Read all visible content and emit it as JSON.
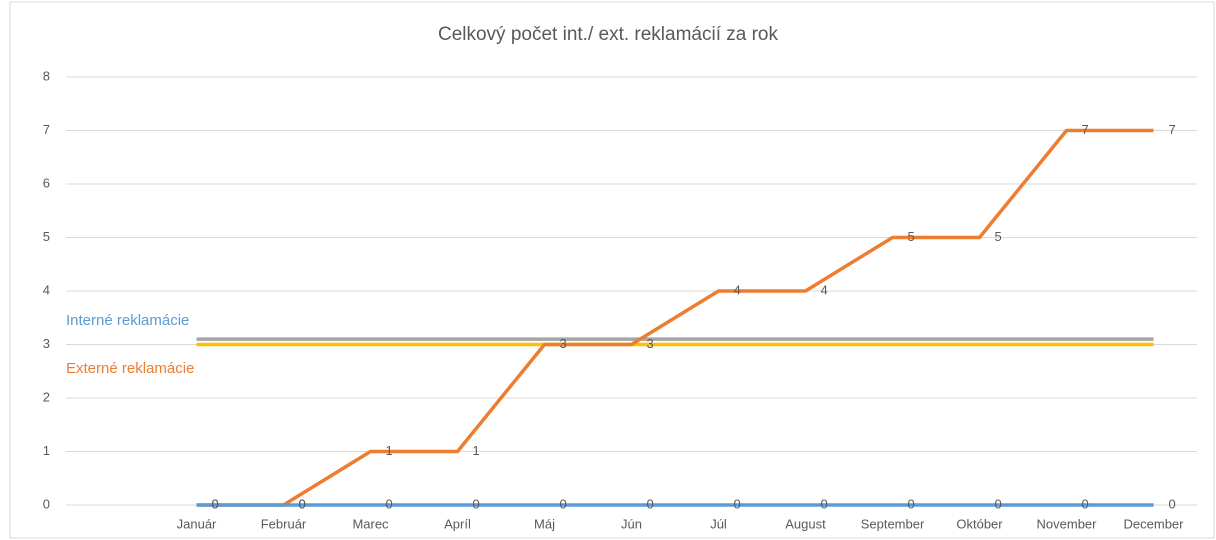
{
  "chart_data": {
    "type": "line",
    "title": "Celkový počet int./ ext. reklamácií za rok",
    "categories": [
      null,
      "Január",
      "Február",
      "Marec",
      "Apríl",
      "Máj",
      "Jún",
      "Júl",
      "August",
      "September",
      "Október",
      "November",
      "December"
    ],
    "series": [
      {
        "name": "Interné reklamácie",
        "color": "#5b9bd5",
        "values": [
          null,
          0,
          0,
          0,
          0,
          0,
          0,
          0,
          0,
          0,
          0,
          0,
          0
        ]
      },
      {
        "name": "Externé reklamácie",
        "color": "#ed7d31",
        "values": [
          null,
          0,
          0,
          1,
          1,
          3,
          3,
          4,
          4,
          5,
          5,
          7,
          7
        ]
      },
      {
        "color": "#a5a5a5",
        "values": [
          null,
          3.1,
          3.1,
          3.1,
          3.1,
          3.1,
          3.1,
          3.1,
          3.1,
          3.1,
          3.1,
          3.1,
          3.1
        ]
      },
      {
        "color": "#ffc000",
        "values": [
          null,
          3,
          3,
          3,
          3,
          3,
          3,
          3,
          3,
          3,
          3,
          3,
          3
        ]
      }
    ],
    "ylim": [
      0,
      8
    ],
    "yticks": [
      0,
      1,
      2,
      3,
      4,
      5,
      6,
      7,
      8
    ],
    "grid": true
  }
}
